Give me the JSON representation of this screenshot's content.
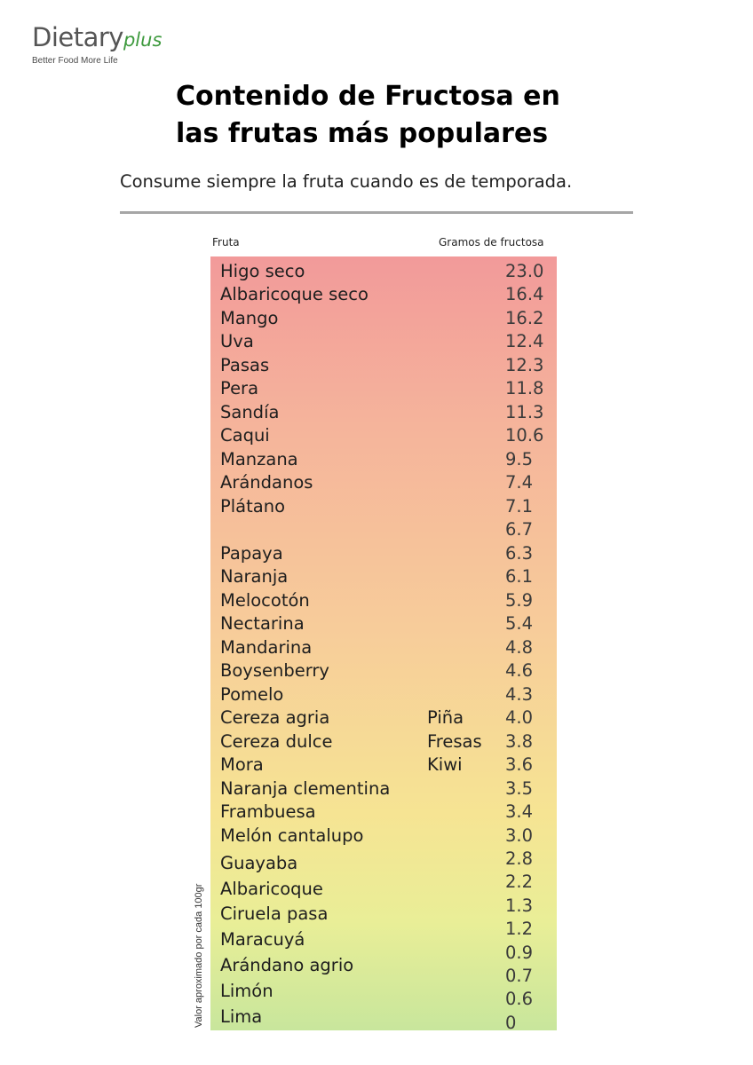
{
  "logo": {
    "main": "Dietary",
    "plus": "plus",
    "tagline": "Better Food More Life"
  },
  "title_line1": "Contenido de Fructosa en",
  "title_line2": "las frutas más populares",
  "subtitle": "Consume siempre la fruta cuando es de temporada.",
  "table": {
    "header_fruit": "Fruta",
    "header_grams": "Gramos de fructosa",
    "side_note": "Valor aproximado por cada 100gr",
    "rows": [
      {
        "fruit": "Higo seco",
        "extra": "",
        "value": "23.0"
      },
      {
        "fruit": "Albaricoque seco",
        "extra": "",
        "value": "16.4"
      },
      {
        "fruit": "Mango",
        "extra": "",
        "value": "16.2"
      },
      {
        "fruit": "Uva",
        "extra": "",
        "value": "12.4"
      },
      {
        "fruit": "Pasas",
        "extra": "",
        "value": "12.3"
      },
      {
        "fruit": "Pera",
        "extra": "",
        "value": "11.8"
      },
      {
        "fruit": "Sandía",
        "extra": "",
        "value": "11.3"
      },
      {
        "fruit": "Caqui",
        "extra": "",
        "value": "10.6"
      },
      {
        "fruit": "Manzana",
        "extra": "",
        "value": "9.5"
      },
      {
        "fruit": "Arándanos",
        "extra": "",
        "value": "7.4"
      },
      {
        "fruit": "Plátano",
        "extra": "",
        "value": "7.1"
      },
      {
        "fruit": "",
        "extra": "",
        "value": "6.7"
      },
      {
        "fruit": "Papaya",
        "extra": "",
        "value": "6.3"
      },
      {
        "fruit": "Naranja",
        "extra": "",
        "value": "6.1"
      },
      {
        "fruit": "Melocotón",
        "extra": "",
        "value": "5.9"
      },
      {
        "fruit": "Nectarina",
        "extra": "",
        "value": "5.4"
      },
      {
        "fruit": "Mandarina",
        "extra": "",
        "value": "4.8"
      },
      {
        "fruit": "Boysenberry",
        "extra": "",
        "value": "4.6"
      },
      {
        "fruit": "Pomelo",
        "extra": "",
        "value": "4.3"
      },
      {
        "fruit": "Cereza agria",
        "extra": "Piña",
        "value": "4.0"
      },
      {
        "fruit": "Cereza dulce",
        "extra": "Fresas",
        "value": "3.8"
      },
      {
        "fruit": "Mora",
        "extra": "Kiwi",
        "value": "3.6"
      },
      {
        "fruit": "Naranja clementina",
        "extra": "",
        "value": "3.5"
      },
      {
        "fruit": "Frambuesa",
        "extra": "",
        "value": "3.4"
      },
      {
        "fruit": "Melón cantalupo",
        "extra": "",
        "value": "3.0"
      },
      {
        "fruit": "Guayaba",
        "extra": "",
        "value": "2.8"
      },
      {
        "fruit": "Albaricoque",
        "extra": "",
        "value": "2.2"
      },
      {
        "fruit": "Ciruela pasa",
        "extra": "",
        "value": "1.3"
      },
      {
        "fruit": "Maracuyá",
        "extra": "",
        "value": "1.2"
      },
      {
        "fruit": "Arándano agrio",
        "extra": "",
        "value": "0.9"
      },
      {
        "fruit": "Limón",
        "extra": "",
        "value": "0.7"
      },
      {
        "fruit": "Lima",
        "extra": "",
        "value": "0.6"
      },
      {
        "fruit": "",
        "extra": "",
        "value": "0"
      }
    ]
  }
}
